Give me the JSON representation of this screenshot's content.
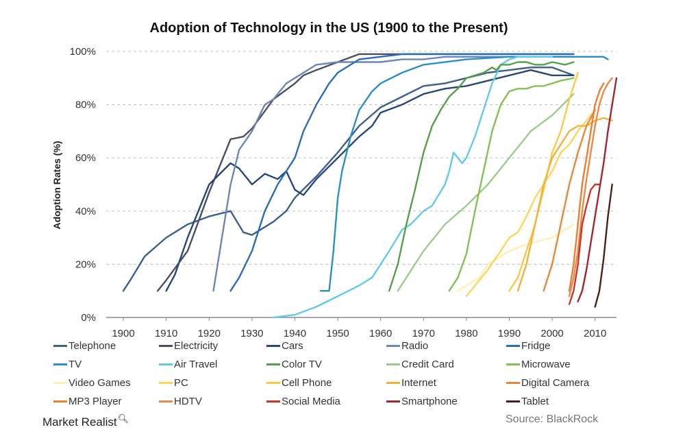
{
  "chart_data": {
    "type": "line",
    "title": "Adoption of Technology in the US (1900 to the Present)",
    "xlabel": "",
    "ylabel": "Adoption Rates (%)",
    "xlim": [
      1896,
      2015
    ],
    "ylim": [
      0,
      100
    ],
    "xticks": [
      "1900",
      "1910",
      "1920",
      "1930",
      "1940",
      "1950",
      "1960",
      "1970",
      "1980",
      "1990",
      "2000",
      "2010"
    ],
    "yticks": [
      "0%",
      "20%",
      "40%",
      "60%",
      "80%",
      "100%"
    ],
    "grid": "horizontal dashed",
    "legend_position": "bottom",
    "series": [
      {
        "name": "Telephone",
        "color": "#3d5f8c",
        "x": [
          1900,
          1902,
          1905,
          1910,
          1915,
          1920,
          1925,
          1928,
          1930,
          1935,
          1938,
          1940,
          1945,
          1950,
          1955,
          1960,
          1965,
          1970,
          1975,
          1980,
          1985,
          1990,
          1995,
          2000,
          2005
        ],
        "y": [
          10,
          15,
          23,
          30,
          35,
          38,
          40,
          32,
          31,
          36,
          40,
          45,
          53,
          62,
          72,
          79,
          83,
          87,
          88,
          90,
          92,
          93,
          94,
          94,
          91
        ]
      },
      {
        "name": "Electricity",
        "color": "#4a4f60",
        "x": [
          1908,
          1910,
          1915,
          1920,
          1925,
          1928,
          1930,
          1935,
          1940,
          1942,
          1945,
          1950,
          1955,
          1960,
          1965,
          1970,
          1980,
          1990,
          2000,
          2005
        ],
        "y": [
          10,
          14,
          25,
          47,
          67,
          68,
          71,
          82,
          88,
          91,
          93,
          96,
          99,
          99,
          99,
          99,
          99,
          99,
          99,
          99
        ]
      },
      {
        "name": "Cars",
        "color": "#274677",
        "x": [
          1910,
          1912,
          1915,
          1920,
          1925,
          1927,
          1930,
          1933,
          1936,
          1938,
          1940,
          1942,
          1945,
          1950,
          1955,
          1958,
          1960,
          1965,
          1970,
          1975,
          1980,
          1985,
          1990,
          1995,
          2000,
          2005
        ],
        "y": [
          10,
          16,
          30,
          50,
          58,
          56,
          50,
          54,
          52,
          55,
          48,
          46,
          52,
          60,
          68,
          72,
          77,
          80,
          84,
          86,
          87,
          89,
          91,
          93,
          91,
          91
        ]
      },
      {
        "name": "Radio",
        "color": "#6b86b8",
        "x": [
          1921,
          1923,
          1925,
          1927,
          1930,
          1933,
          1935,
          1938,
          1940,
          1945,
          1950,
          1955,
          1960,
          1965,
          1970,
          1975,
          1980,
          1990,
          2000,
          2005
        ],
        "y": [
          10,
          30,
          50,
          63,
          70,
          80,
          82,
          88,
          90,
          95,
          96,
          96,
          96,
          97,
          97,
          98,
          98,
          98,
          98,
          98
        ]
      },
      {
        "name": "Fridge",
        "color": "#2a6cb8",
        "x": [
          1925,
          1927,
          1930,
          1933,
          1936,
          1940,
          1942,
          1945,
          1948,
          1950,
          1953,
          1955,
          1960,
          1965,
          1970,
          1980,
          1990,
          2000,
          2005
        ],
        "y": [
          10,
          15,
          25,
          40,
          50,
          60,
          70,
          80,
          88,
          92,
          95,
          97,
          98,
          99,
          99,
          99,
          99,
          99,
          99
        ]
      },
      {
        "name": "TV",
        "color": "#2b8ec4",
        "x": [
          1946,
          1948,
          1949,
          1950,
          1951,
          1953,
          1955,
          1958,
          1960,
          1965,
          1970,
          1980,
          1990,
          2000,
          2005,
          2010,
          2012,
          2013
        ],
        "y": [
          10,
          10,
          25,
          45,
          55,
          68,
          78,
          85,
          88,
          92,
          95,
          97,
          98,
          98,
          98,
          98,
          98,
          97
        ]
      },
      {
        "name": "Air Travel",
        "color": "#62c9ec",
        "x": [
          1935,
          1940,
          1945,
          1950,
          1955,
          1958,
          1960,
          1962,
          1965,
          1967,
          1970,
          1972,
          1975,
          1976,
          1977,
          1978,
          1979,
          1980,
          1982,
          1984,
          1986,
          1988,
          1990,
          1992,
          1995,
          2000
        ],
        "y": [
          0,
          1,
          4,
          8,
          12,
          15,
          20,
          25,
          33,
          35,
          40,
          42,
          50,
          55,
          62,
          60,
          58,
          60,
          68,
          78,
          88,
          95,
          97,
          98,
          98,
          98
        ]
      },
      {
        "name": "Color TV",
        "color": "#55a046",
        "x": [
          1962,
          1964,
          1966,
          1968,
          1970,
          1972,
          1974,
          1976,
          1978,
          1980,
          1982,
          1984,
          1985,
          1986,
          1987,
          1988,
          1990,
          1992,
          1994,
          1996,
          1998,
          2000,
          2003,
          2005
        ],
        "y": [
          10,
          20,
          35,
          48,
          62,
          72,
          78,
          83,
          86,
          90,
          91,
          92,
          93,
          94,
          93,
          95,
          95,
          96,
          96,
          95,
          95,
          96,
          95,
          96
        ]
      },
      {
        "name": "Credit Card",
        "color": "#9ccb8a",
        "x": [
          1964,
          1966,
          1970,
          1975,
          1980,
          1985,
          1990,
          1995,
          2000,
          2005
        ],
        "y": [
          10,
          15,
          25,
          35,
          42,
          50,
          60,
          70,
          76,
          84
        ]
      },
      {
        "name": "Microwave",
        "color": "#86bf52",
        "x": [
          1976,
          1978,
          1980,
          1982,
          1984,
          1986,
          1988,
          1990,
          1992,
          1994,
          1996,
          1998,
          2000,
          2002,
          2005
        ],
        "y": [
          10,
          15,
          24,
          40,
          55,
          70,
          80,
          85,
          86,
          86,
          87,
          87,
          88,
          89,
          90
        ]
      },
      {
        "name": "Video Games",
        "color": "#fdf0b2",
        "x": [
          1978,
          1980,
          1983,
          1985,
          1990,
          1995,
          2000,
          2005
        ],
        "y": [
          10,
          12,
          15,
          20,
          25,
          28,
          30,
          35
        ]
      },
      {
        "name": "PC",
        "color": "#fcd55c",
        "x": [
          1980,
          1982,
          1985,
          1988,
          1990,
          1992,
          1994,
          1996,
          1998,
          2000,
          2002,
          2004,
          2006,
          2008,
          2010
        ],
        "y": [
          8,
          12,
          18,
          25,
          30,
          32,
          38,
          45,
          50,
          55,
          62,
          65,
          70,
          74,
          78
        ]
      },
      {
        "name": "Cell Phone",
        "color": "#f7cb45",
        "x": [
          1990,
          1992,
          1994,
          1996,
          1998,
          2000,
          2002,
          2004,
          2006
        ],
        "y": [
          10,
          15,
          25,
          35,
          48,
          62,
          70,
          82,
          92
        ]
      },
      {
        "name": "Internet",
        "color": "#f2b23a",
        "x": [
          1992,
          1994,
          1996,
          1998,
          2000,
          2002,
          2004,
          2006,
          2008,
          2010,
          2012,
          2014
        ],
        "y": [
          10,
          20,
          35,
          50,
          60,
          65,
          70,
          72,
          72,
          74,
          75,
          74
        ]
      },
      {
        "name": "Digital Camera",
        "color": "#e38a3a",
        "x": [
          1998,
          2000,
          2002,
          2004,
          2006,
          2008,
          2010
        ],
        "y": [
          10,
          20,
          35,
          50,
          62,
          72,
          78
        ]
      },
      {
        "name": "MP3 Player",
        "color": "#ef7d2e",
        "x": [
          2004,
          2005,
          2006,
          2007,
          2008,
          2009,
          2010,
          2011,
          2012
        ],
        "y": [
          10,
          20,
          35,
          50,
          60,
          70,
          80,
          85,
          88
        ]
      },
      {
        "name": "HDTV",
        "color": "#e98a4a",
        "x": [
          2004,
          2005,
          2006,
          2007,
          2008,
          2009,
          2010,
          2011,
          2012,
          2013,
          2014
        ],
        "y": [
          8,
          15,
          25,
          40,
          52,
          62,
          72,
          80,
          85,
          88,
          90
        ]
      },
      {
        "name": "Social Media",
        "color": "#c7362a",
        "x": [
          2004,
          2005,
          2006,
          2007,
          2008,
          2009,
          2010,
          2011
        ],
        "y": [
          5,
          10,
          20,
          35,
          42,
          48,
          50,
          50
        ]
      },
      {
        "name": "Smartphone",
        "color": "#a3262c",
        "x": [
          2006,
          2007,
          2008,
          2009,
          2010,
          2011,
          2012,
          2013,
          2014,
          2015
        ],
        "y": [
          6,
          10,
          18,
          28,
          38,
          48,
          58,
          70,
          80,
          90
        ]
      },
      {
        "name": "Tablet",
        "color": "#4a1f1a",
        "x": [
          2010,
          2011,
          2012,
          2013,
          2014
        ],
        "y": [
          4,
          10,
          22,
          38,
          50
        ]
      }
    ]
  },
  "footer": {
    "brand": "Market Realist",
    "source": "Source: BlackRock"
  }
}
